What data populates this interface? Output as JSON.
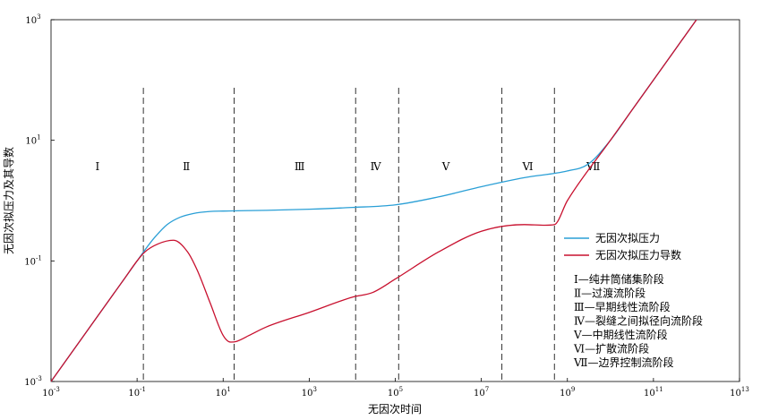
{
  "chart_data": {
    "type": "line",
    "xlabel": "无因次时间",
    "ylabel": "无因次拟压力及其导数",
    "x_scale": "log",
    "y_scale": "log",
    "xlim": [
      0.001,
      10000000000000
    ],
    "ylim": [
      0.001,
      1000
    ],
    "x_ticks": [
      {
        "value": 0.001,
        "base": "10",
        "exp": "-3"
      },
      {
        "value": 0.1,
        "base": "10",
        "exp": "-1"
      },
      {
        "value": 10,
        "base": "10",
        "exp": "1"
      },
      {
        "value": 1000,
        "base": "10",
        "exp": "3"
      },
      {
        "value": 100000,
        "base": "10",
        "exp": "5"
      },
      {
        "value": 10000000,
        "base": "10",
        "exp": "7"
      },
      {
        "value": 1000000000,
        "base": "10",
        "exp": "9"
      },
      {
        "value": 100000000000,
        "base": "10",
        "exp": "11"
      },
      {
        "value": 10000000000000,
        "base": "10",
        "exp": "13"
      }
    ],
    "y_ticks": [
      {
        "value": 0.001,
        "base": "10",
        "exp": "-3"
      },
      {
        "value": 0.1,
        "base": "10",
        "exp": "-1"
      },
      {
        "value": 10,
        "base": "10",
        "exp": "1"
      },
      {
        "value": 1000,
        "base": "10",
        "exp": "3"
      }
    ],
    "grid": false,
    "legend_position": "right",
    "boundaries": [
      0.14,
      18,
      12000,
      120000,
      30000000,
      500000000
    ],
    "stages": [
      {
        "label": "Ⅰ",
        "x": 0.012
      },
      {
        "label": "Ⅱ",
        "x": 1.4
      },
      {
        "label": "Ⅲ",
        "x": 600
      },
      {
        "label": "Ⅳ",
        "x": 35000
      },
      {
        "label": "Ⅴ",
        "x": 1500000
      },
      {
        "label": "Ⅵ",
        "x": 120000000
      },
      {
        "label": "Ⅶ",
        "x": 4000000000
      }
    ],
    "stage_label_y": 3.2,
    "series": [
      {
        "name": "无因次拟压力",
        "color": "#2a9fd6",
        "x": [
          0.001,
          0.01,
          0.05,
          0.1,
          0.15,
          0.25,
          0.5,
          1,
          2,
          5,
          10,
          30,
          100,
          1000,
          10000,
          100000,
          1000000,
          10000000,
          100000000,
          1000000000,
          3000000000,
          10000000000,
          30000000000,
          100000000000,
          1000000000000
        ],
        "y": [
          0.001,
          0.01,
          0.05,
          0.1,
          0.15,
          0.24,
          0.4,
          0.53,
          0.61,
          0.66,
          0.67,
          0.68,
          0.69,
          0.72,
          0.77,
          0.85,
          1.15,
          1.7,
          2.4,
          3.1,
          4.0,
          10,
          30,
          100,
          1000
        ]
      },
      {
        "name": "无因次拟压力导数",
        "color": "#c8102e",
        "x": [
          0.001,
          0.01,
          0.05,
          0.1,
          0.15,
          0.3,
          0.7,
          1.5,
          2.5,
          5,
          10,
          15,
          20,
          40,
          100,
          1000,
          10000,
          30000,
          100000,
          1000000,
          10000000,
          100000000,
          300000000,
          500000000,
          1000000000,
          10000000000,
          100000000000,
          1000000000000
        ],
        "y": [
          0.001,
          0.01,
          0.05,
          0.1,
          0.14,
          0.19,
          0.22,
          0.14,
          0.07,
          0.02,
          0.0058,
          0.0045,
          0.0046,
          0.0058,
          0.008,
          0.014,
          0.025,
          0.03,
          0.05,
          0.14,
          0.31,
          0.4,
          0.39,
          0.4,
          1,
          10,
          100,
          1000
        ]
      }
    ],
    "notes": [
      "Ⅰ—纯井筒储集阶段",
      "Ⅱ—过渡流阶段",
      "Ⅲ—早期线性流阶段",
      "Ⅳ—裂缝之间拟径向流阶段",
      "Ⅴ—中期线性流阶段",
      "Ⅵ—扩散流阶段",
      "Ⅶ—边界控制流阶段"
    ]
  }
}
